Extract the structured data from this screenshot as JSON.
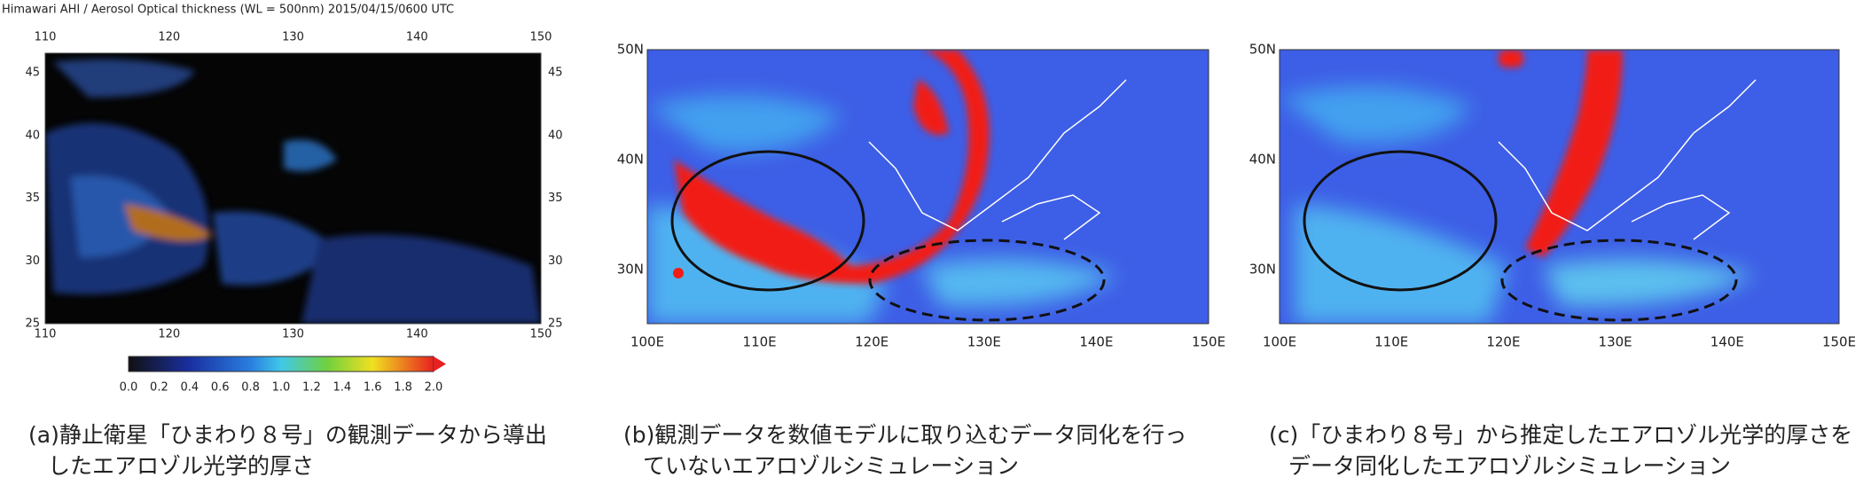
{
  "panels": [
    {
      "title": "Himawari AHI  /  Aerosol Optical thickness (WL = 500nm)   2015/04/15/0600 UTC",
      "x_labels": [
        110,
        120,
        130,
        140,
        150
      ],
      "y_labels": [
        45,
        40,
        35,
        30,
        25
      ],
      "colorbar_labels": [
        "0.0",
        "0.2",
        "0.4",
        "0.6",
        "0.8",
        "1.0",
        "1.2",
        "1.4",
        "1.6",
        "1.8",
        "2.0"
      ],
      "caption": [
        "(a)静止衛星「ひまわり８号」の観測データから導出",
        "したエアロゾル光学的厚さ"
      ]
    },
    {
      "x_labels": [
        "100E",
        "110E",
        "120E",
        "130E",
        "140E",
        "150E"
      ],
      "y_labels": [
        "50N",
        "40N",
        "30N"
      ],
      "caption": [
        "(b)観測データを数値モデルに取り込むデータ同化を行っ",
        "ていないエアロゾルシミュレーション"
      ]
    },
    {
      "x_labels": [
        "100E",
        "110E",
        "120E",
        "130E",
        "140E",
        "150E"
      ],
      "y_labels": [
        "50N",
        "40N",
        "30N"
      ],
      "caption": [
        "(c)「ひまわり８号」から推定したエアロゾル光学的厚さを",
        "データ同化したエアロゾルシミュレーション"
      ]
    }
  ]
}
